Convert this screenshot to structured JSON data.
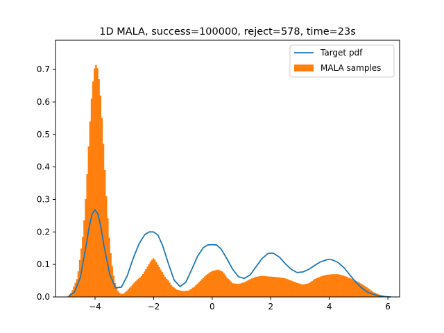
{
  "chart_data": {
    "type": "bar",
    "title": "1D MALA, success=100000, reject=578, time=23s",
    "xlabel": "",
    "ylabel": "",
    "xlim": [
      -5.35,
      6.4
    ],
    "ylim": [
      0,
      0.79
    ],
    "xticks": [
      -4,
      -2,
      0,
      2,
      4,
      6
    ],
    "xtick_labels": [
      "−4",
      "−2",
      "0",
      "2",
      "4",
      "6"
    ],
    "yticks": [
      0.0,
      0.1,
      0.2,
      0.3,
      0.4,
      0.5,
      0.6,
      0.7
    ],
    "ytick_labels": [
      "0.0",
      "0.1",
      "0.2",
      "0.3",
      "0.4",
      "0.5",
      "0.6",
      "0.7"
    ],
    "grid": false,
    "legend_position": "top-right",
    "colors": {
      "line": "#1f77b4",
      "bars": "#ff7f0e"
    },
    "series": [
      {
        "name": "Target pdf",
        "kind": "line",
        "x": [
          -4.9,
          -4.7,
          -4.5,
          -4.3,
          -4.2,
          -4.1,
          -4.0,
          -3.9,
          -3.8,
          -3.7,
          -3.5,
          -3.3,
          -3.1,
          -2.9,
          -2.7,
          -2.5,
          -2.3,
          -2.15,
          -2.0,
          -1.85,
          -1.7,
          -1.5,
          -1.3,
          -1.1,
          -0.9,
          -0.7,
          -0.5,
          -0.3,
          -0.15,
          0.0,
          0.15,
          0.3,
          0.5,
          0.7,
          0.9,
          1.1,
          1.3,
          1.5,
          1.7,
          1.9,
          2.0,
          2.1,
          2.3,
          2.5,
          2.7,
          2.9,
          3.1,
          3.3,
          3.5,
          3.7,
          3.9,
          4.0,
          4.1,
          4.3,
          4.5,
          4.7,
          4.9,
          5.1,
          5.3,
          5.5,
          5.7,
          5.9,
          6.1
        ],
        "y": [
          0.002,
          0.015,
          0.06,
          0.16,
          0.215,
          0.255,
          0.268,
          0.255,
          0.215,
          0.16,
          0.07,
          0.028,
          0.03,
          0.065,
          0.118,
          0.163,
          0.192,
          0.2,
          0.2,
          0.19,
          0.16,
          0.104,
          0.052,
          0.032,
          0.045,
          0.084,
          0.125,
          0.152,
          0.16,
          0.161,
          0.16,
          0.148,
          0.118,
          0.085,
          0.062,
          0.057,
          0.068,
          0.093,
          0.118,
          0.133,
          0.135,
          0.134,
          0.122,
          0.102,
          0.085,
          0.075,
          0.077,
          0.085,
          0.097,
          0.108,
          0.114,
          0.116,
          0.114,
          0.106,
          0.09,
          0.068,
          0.046,
          0.028,
          0.015,
          0.008,
          0.003,
          0.001,
          0.0
        ]
      },
      {
        "name": "MALA samples",
        "kind": "histogram",
        "anchors_x": [
          -4.95,
          -4.8,
          -4.6,
          -4.4,
          -4.3,
          -4.2,
          -4.1,
          -4.0,
          -3.9,
          -3.8,
          -3.7,
          -3.6,
          -3.5,
          -3.4,
          -3.3,
          -3.2,
          -3.1,
          -3.0,
          -2.9,
          -2.8,
          -2.6,
          -2.4,
          -2.2,
          -2.1,
          -2.0,
          -1.9,
          -1.8,
          -1.7,
          -1.6,
          -1.5,
          -1.4,
          -1.2,
          -1.0,
          -0.8,
          -0.6,
          -0.4,
          -0.2,
          0.0,
          0.2,
          0.35,
          0.5,
          0.7,
          0.9,
          1.1,
          1.3,
          1.5,
          1.7,
          1.9,
          2.1,
          2.3,
          2.5,
          2.7,
          2.9,
          3.1,
          3.3,
          3.5,
          3.7,
          3.9,
          4.1,
          4.3,
          4.5,
          4.7,
          4.9,
          5.1,
          5.3,
          5.5,
          5.7,
          5.9,
          6.1
        ],
        "anchors_y": [
          0.0,
          0.015,
          0.06,
          0.2,
          0.33,
          0.5,
          0.64,
          0.72,
          0.7,
          0.6,
          0.44,
          0.28,
          0.16,
          0.08,
          0.035,
          0.015,
          0.008,
          0.012,
          0.02,
          0.03,
          0.05,
          0.065,
          0.095,
          0.11,
          0.12,
          0.105,
          0.09,
          0.075,
          0.06,
          0.05,
          0.035,
          0.022,
          0.018,
          0.02,
          0.032,
          0.05,
          0.068,
          0.08,
          0.084,
          0.078,
          0.06,
          0.042,
          0.04,
          0.045,
          0.055,
          0.062,
          0.065,
          0.063,
          0.062,
          0.06,
          0.057,
          0.05,
          0.043,
          0.038,
          0.042,
          0.055,
          0.063,
          0.068,
          0.07,
          0.07,
          0.065,
          0.058,
          0.05,
          0.04,
          0.028,
          0.015,
          0.007,
          0.003,
          0.0
        ]
      }
    ]
  }
}
